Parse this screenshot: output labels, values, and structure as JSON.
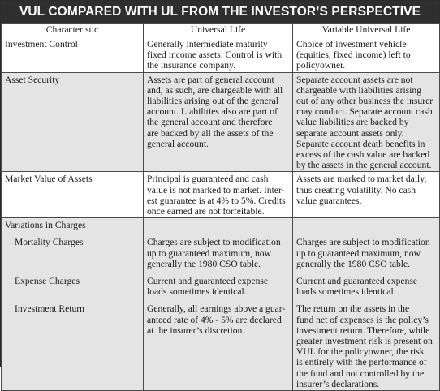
{
  "title": "VUL COMPARED WITH UL FROM THE INVESTOR’S PERSPECTIVE",
  "headers": [
    "Characteristic",
    "Universal Life",
    "Variable Universal Life"
  ],
  "rows": {
    "investment_control": {
      "characteristic": "Investment Control",
      "ul": [
        "Generally intermediate maturity",
        "fixed income assets. Control is with",
        "the insurance company."
      ],
      "vul": [
        "Choice of investment vehicle",
        "(equities, fixed income) left to",
        "policyowner."
      ]
    },
    "asset_security": {
      "characteristic": "Asset Security",
      "ul": [
        "Assets are part of general account",
        "and, as such, are chargeable with all",
        "liabilities arising out of the general",
        "account. Liabilities also are part of",
        "the general account and therefore",
        "are backed by all the assets of the",
        "general account."
      ],
      "vul": [
        "Separate account assets are not",
        "chargeable with liabilities arising",
        "out of any other business the insurer",
        "may conduct. Separate account cash",
        "value liabilities are backed by",
        "separate account assets only.",
        "Separate account death benefits in",
        "excess of the cash value are backed",
        "by the assets in the general account."
      ]
    },
    "market_value": {
      "characteristic": "Market Value of Assets",
      "ul": [
        "Principal is guaranteed and cash",
        "value is not marked to market. Inter-",
        "est guarantee is at 4% to 5%. Credits",
        "once earned are not forfeitable."
      ],
      "vul": [
        "Assets are marked to market daily,",
        "thus creating volatility. No cash",
        "value guarantees."
      ]
    },
    "variations": {
      "characteristic": "Variations in Charges",
      "mortality": {
        "label": "Mortality Charges",
        "ul": [
          "Charges are subject to modification",
          "up to guaranteed maximum, now",
          "generally the 1980 CSO table."
        ],
        "vul": [
          "Charges are subject to modification",
          "up to guaranteed maximum, now",
          "generally the 1980 CSO table."
        ]
      },
      "expense": {
        "label": "Expense Charges",
        "ul": [
          "Current and guaranteed expense",
          "loads sometimes identical."
        ],
        "vul": [
          "Current and guaranteed expense",
          "loads sometimes identical."
        ]
      },
      "return": {
        "label": "Investment Return",
        "ul": [
          "Generally, all earnings above a guar-",
          "anteed rate of 4% - 5% are declared",
          "at the insurer’s discretion."
        ],
        "vul": [
          "The return on the assets in the",
          "fund net of expenses is the policy’s",
          "investment return. Therefore, while",
          "greater investment risk is present on",
          "VUL for the policyowner, the risk",
          "is entirely with the performance of",
          "the fund and not controlled by the",
          "insurer’s declarations."
        ]
      }
    }
  }
}
